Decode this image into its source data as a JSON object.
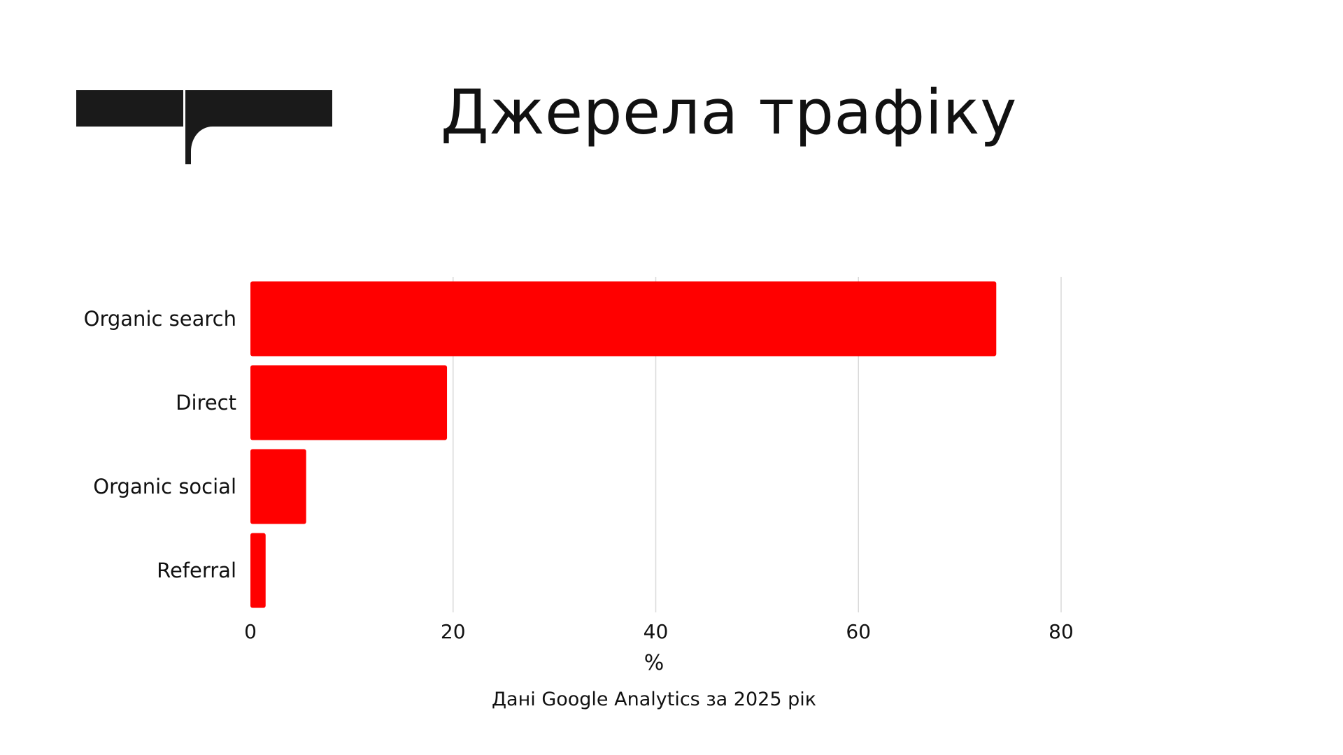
{
  "header": {
    "title": "Джерела трафіку"
  },
  "colors": {
    "bar": "#ff0000",
    "grid": "#d9d9d9",
    "logo": "#1a1a1a",
    "text": "#111111"
  },
  "chart_data": {
    "type": "bar",
    "orientation": "horizontal",
    "categories": [
      "Organic search",
      "Direct",
      "Organic social",
      "Referral"
    ],
    "values": [
      73.6,
      19.4,
      5.5,
      1.5
    ],
    "xlabel": "%",
    "ylabel": "",
    "xlim": [
      0,
      80
    ],
    "xticks": [
      0,
      20,
      40,
      60,
      80
    ],
    "grid": "vertical",
    "legend": "none"
  },
  "footer": {
    "source": "Дані Google Analytics за 2025 рік"
  }
}
